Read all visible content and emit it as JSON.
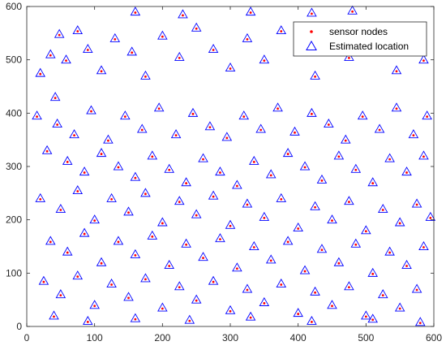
{
  "chart_data": {
    "type": "scatter",
    "title": "",
    "xlabel": "",
    "ylabel": "",
    "xlim": [
      0,
      600
    ],
    "ylim": [
      0,
      600
    ],
    "xticks": [
      "0",
      "100",
      "200",
      "300",
      "400",
      "500",
      "600"
    ],
    "yticks": [
      "0",
      "100",
      "200",
      "300",
      "400",
      "500",
      "600"
    ],
    "grid": false,
    "legend_position": "top-right",
    "series": [
      {
        "name": "sensor nodes",
        "marker": "dot",
        "color": "#ff0000",
        "points": [
          [
            35,
            510
          ],
          [
            48,
            548
          ],
          [
            20,
            475
          ],
          [
            58,
            500
          ],
          [
            42,
            430
          ],
          [
            75,
            555
          ],
          [
            90,
            520
          ],
          [
            110,
            480
          ],
          [
            130,
            540
          ],
          [
            155,
            515
          ],
          [
            175,
            470
          ],
          [
            200,
            545
          ],
          [
            225,
            505
          ],
          [
            250,
            560
          ],
          [
            275,
            520
          ],
          [
            300,
            485
          ],
          [
            325,
            540
          ],
          [
            350,
            500
          ],
          [
            375,
            555
          ],
          [
            400,
            515
          ],
          [
            425,
            470
          ],
          [
            450,
            540
          ],
          [
            475,
            505
          ],
          [
            500,
            560
          ],
          [
            520,
            520
          ],
          [
            545,
            480
          ],
          [
            565,
            540
          ],
          [
            585,
            500
          ],
          [
            160,
            590
          ],
          [
            230,
            585
          ],
          [
            330,
            590
          ],
          [
            420,
            588
          ],
          [
            480,
            592
          ],
          [
            15,
            395
          ],
          [
            45,
            380
          ],
          [
            70,
            360
          ],
          [
            95,
            405
          ],
          [
            120,
            350
          ],
          [
            145,
            395
          ],
          [
            170,
            370
          ],
          [
            195,
            410
          ],
          [
            220,
            360
          ],
          [
            245,
            400
          ],
          [
            270,
            375
          ],
          [
            295,
            355
          ],
          [
            320,
            395
          ],
          [
            345,
            370
          ],
          [
            370,
            410
          ],
          [
            395,
            365
          ],
          [
            420,
            400
          ],
          [
            445,
            380
          ],
          [
            470,
            350
          ],
          [
            495,
            395
          ],
          [
            520,
            370
          ],
          [
            545,
            410
          ],
          [
            570,
            360
          ],
          [
            590,
            395
          ],
          [
            30,
            330
          ],
          [
            60,
            310
          ],
          [
            85,
            290
          ],
          [
            110,
            325
          ],
          [
            135,
            300
          ],
          [
            160,
            280
          ],
          [
            185,
            320
          ],
          [
            210,
            295
          ],
          [
            235,
            270
          ],
          [
            260,
            315
          ],
          [
            285,
            290
          ],
          [
            310,
            265
          ],
          [
            335,
            310
          ],
          [
            360,
            285
          ],
          [
            385,
            325
          ],
          [
            410,
            300
          ],
          [
            435,
            275
          ],
          [
            460,
            320
          ],
          [
            485,
            295
          ],
          [
            510,
            270
          ],
          [
            535,
            315
          ],
          [
            560,
            290
          ],
          [
            585,
            320
          ],
          [
            20,
            240
          ],
          [
            50,
            220
          ],
          [
            75,
            255
          ],
          [
            100,
            200
          ],
          [
            125,
            240
          ],
          [
            150,
            215
          ],
          [
            175,
            250
          ],
          [
            200,
            195
          ],
          [
            225,
            235
          ],
          [
            250,
            210
          ],
          [
            275,
            245
          ],
          [
            300,
            190
          ],
          [
            325,
            230
          ],
          [
            350,
            205
          ],
          [
            375,
            240
          ],
          [
            400,
            185
          ],
          [
            425,
            225
          ],
          [
            450,
            200
          ],
          [
            475,
            235
          ],
          [
            500,
            180
          ],
          [
            525,
            220
          ],
          [
            550,
            195
          ],
          [
            575,
            230
          ],
          [
            595,
            205
          ],
          [
            35,
            160
          ],
          [
            60,
            140
          ],
          [
            85,
            175
          ],
          [
            110,
            120
          ],
          [
            135,
            160
          ],
          [
            160,
            135
          ],
          [
            185,
            170
          ],
          [
            210,
            115
          ],
          [
            235,
            155
          ],
          [
            260,
            130
          ],
          [
            285,
            165
          ],
          [
            310,
            110
          ],
          [
            335,
            150
          ],
          [
            360,
            125
          ],
          [
            385,
            160
          ],
          [
            410,
            105
          ],
          [
            435,
            145
          ],
          [
            460,
            120
          ],
          [
            485,
            155
          ],
          [
            510,
            100
          ],
          [
            535,
            140
          ],
          [
            560,
            115
          ],
          [
            585,
            150
          ],
          [
            25,
            85
          ],
          [
            50,
            60
          ],
          [
            75,
            95
          ],
          [
            100,
            40
          ],
          [
            125,
            80
          ],
          [
            150,
            55
          ],
          [
            175,
            90
          ],
          [
            200,
            35
          ],
          [
            225,
            75
          ],
          [
            250,
            50
          ],
          [
            275,
            85
          ],
          [
            300,
            30
          ],
          [
            325,
            70
          ],
          [
            350,
            45
          ],
          [
            375,
            80
          ],
          [
            400,
            25
          ],
          [
            425,
            65
          ],
          [
            450,
            40
          ],
          [
            475,
            75
          ],
          [
            500,
            20
          ],
          [
            525,
            60
          ],
          [
            550,
            35
          ],
          [
            575,
            70
          ],
          [
            40,
            20
          ],
          [
            90,
            10
          ],
          [
            160,
            15
          ],
          [
            240,
            12
          ],
          [
            330,
            18
          ],
          [
            420,
            10
          ],
          [
            510,
            14
          ],
          [
            580,
            8
          ]
        ]
      },
      {
        "name": "Estimated location",
        "marker": "triangle",
        "color": "#0000ff",
        "points": "same as sensor nodes"
      }
    ]
  },
  "legend": {
    "items": [
      {
        "label": "sensor nodes",
        "color": "#ff0000",
        "marker": "dot"
      },
      {
        "label": "Estimated location",
        "color": "#0000ff",
        "marker": "triangle"
      }
    ]
  }
}
